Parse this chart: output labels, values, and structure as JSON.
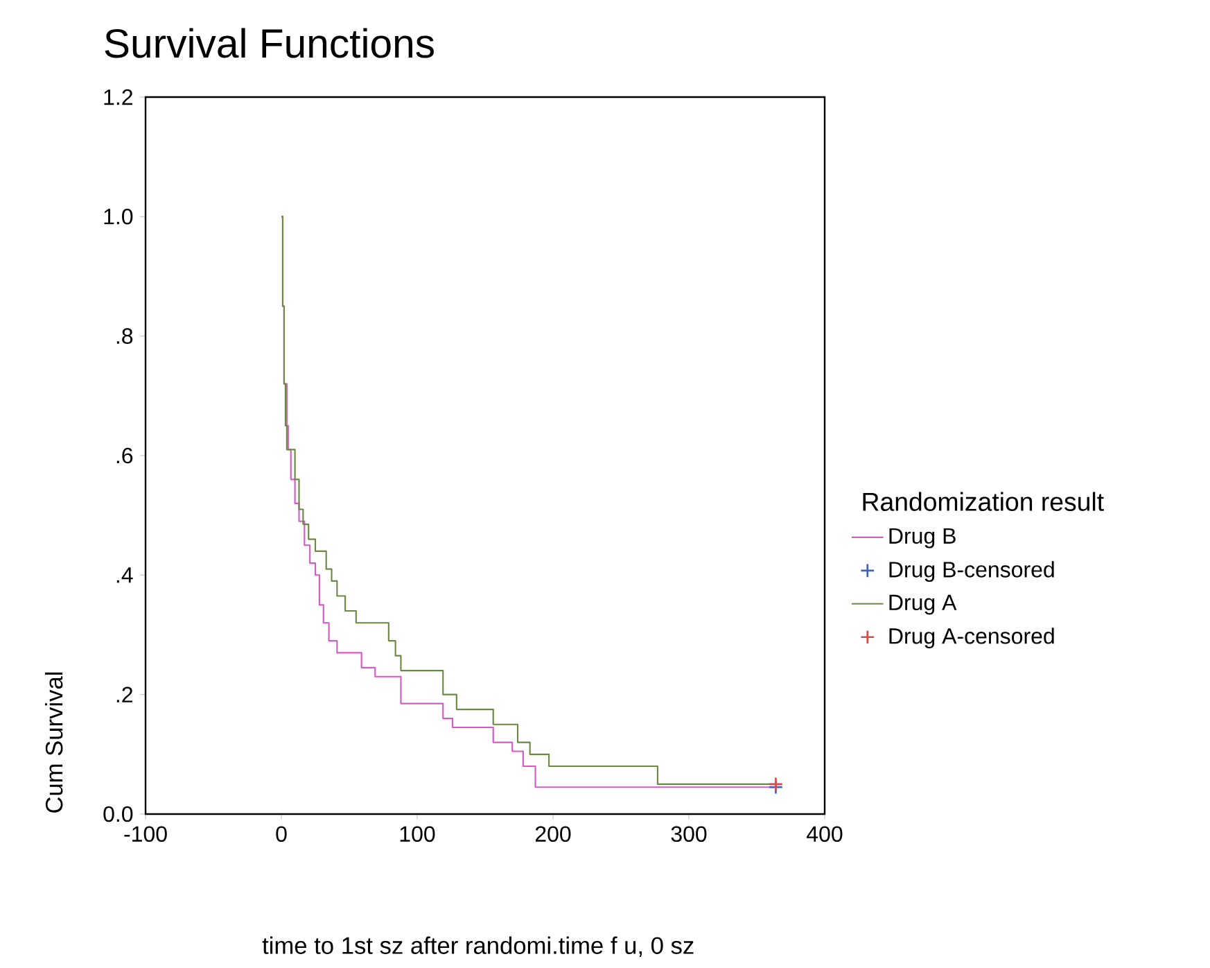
{
  "chart_data": {
    "type": "step",
    "title": "Survival Functions",
    "xlabel": "time to 1st sz after randomi.time f u, 0 sz",
    "ylabel": "Cum Survival",
    "legend_title": "Randomization result",
    "legend": "right",
    "grid": false,
    "xlim": [
      -100,
      400
    ],
    "xticks": [
      -100,
      0,
      100,
      200,
      300,
      400
    ],
    "ylim": [
      0,
      1.2
    ],
    "yticks": [
      {
        "value": 0,
        "label": "0.0"
      },
      {
        "value": 0.2,
        "label": ".2"
      },
      {
        "value": 0.4,
        "label": ".4"
      },
      {
        "value": 0.6,
        "label": ".6"
      },
      {
        "value": 0.8,
        "label": ".8"
      },
      {
        "value": 1.0,
        "label": "1.0"
      },
      {
        "value": 1.2,
        "label": "1.2"
      }
    ],
    "series": [
      {
        "name": "Drug B",
        "color": "#d858c8",
        "marker": "none",
        "x": [
          0,
          1,
          2,
          4,
          5,
          7,
          10,
          13,
          17,
          21,
          25,
          28,
          31,
          35,
          41,
          59,
          69,
          88,
          119,
          126,
          156,
          170,
          178,
          187,
          364
        ],
        "values": [
          1.0,
          0.85,
          0.72,
          0.65,
          0.61,
          0.56,
          0.52,
          0.49,
          0.45,
          0.42,
          0.4,
          0.35,
          0.32,
          0.29,
          0.27,
          0.245,
          0.23,
          0.185,
          0.16,
          0.145,
          0.12,
          0.105,
          0.08,
          0.045,
          0.045
        ]
      },
      {
        "name": "Drug B-censored",
        "type": "scatter",
        "color": "#4060c0",
        "marker": "cross",
        "x": [
          364
        ],
        "values": [
          0.045
        ]
      },
      {
        "name": "Drug A",
        "color": "#6a8a40",
        "marker": "none",
        "x": [
          0,
          1,
          2,
          3,
          4,
          10,
          13,
          16,
          20,
          25,
          33,
          37,
          41,
          47,
          55,
          79,
          84,
          88,
          119,
          129,
          156,
          174,
          183,
          197,
          277,
          364
        ],
        "values": [
          1.0,
          0.85,
          0.72,
          0.65,
          0.61,
          0.56,
          0.51,
          0.485,
          0.46,
          0.44,
          0.41,
          0.39,
          0.365,
          0.34,
          0.32,
          0.29,
          0.265,
          0.24,
          0.2,
          0.175,
          0.15,
          0.12,
          0.1,
          0.08,
          0.05,
          0.05
        ]
      },
      {
        "name": "Drug A-censored",
        "type": "scatter",
        "color": "#e04848",
        "marker": "cross",
        "x": [
          364
        ],
        "values": [
          0.05
        ]
      }
    ]
  }
}
